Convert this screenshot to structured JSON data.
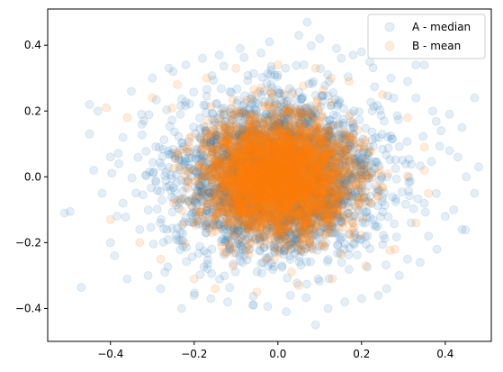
{
  "chart_data": {
    "type": "scatter",
    "title": "",
    "xlabel": "",
    "ylabel": "",
    "xlim": [
      -0.55,
      0.51
    ],
    "ylim": [
      -0.5,
      0.51
    ],
    "xticks": [
      -0.4,
      -0.2,
      0.0,
      0.2,
      0.4
    ],
    "xtick_labels": [
      "−0.4",
      "−0.2",
      "0.0",
      "0.2",
      "0.4"
    ],
    "yticks": [
      -0.4,
      -0.2,
      0.0,
      0.2,
      0.4
    ],
    "ytick_labels": [
      "−0.4",
      "−0.2",
      "0.0",
      "0.2",
      "0.4"
    ],
    "grid": false,
    "legend_position": "top-right",
    "series": [
      {
        "name": "A - median",
        "color": "#1f77b4",
        "alpha": 0.12,
        "distribution": "2D normal cloud, center (0.0, 0.0), std approx 0.12",
        "points": [
          [
            -0.51,
            -0.11
          ],
          [
            -0.45,
            0.22
          ],
          [
            -0.45,
            0.13
          ],
          [
            -0.43,
            0.2
          ],
          [
            -0.4,
            0.06
          ],
          [
            -0.4,
            -0.2
          ],
          [
            -0.39,
            -0.24
          ],
          [
            -0.37,
            0.12
          ],
          [
            -0.36,
            -0.31
          ],
          [
            -0.35,
            0.26
          ],
          [
            -0.33,
            -0.16
          ],
          [
            -0.32,
            0.17
          ],
          [
            -0.31,
            -0.3
          ],
          [
            -0.3,
            0.3
          ],
          [
            -0.28,
            -0.34
          ],
          [
            -0.27,
            -0.29
          ],
          [
            -0.25,
            0.32
          ],
          [
            -0.23,
            -0.4
          ],
          [
            -0.22,
            0.34
          ],
          [
            -0.2,
            -0.36
          ],
          [
            -0.18,
            0.36
          ],
          [
            -0.16,
            -0.37
          ],
          [
            -0.14,
            0.37
          ],
          [
            -0.12,
            -0.38
          ],
          [
            -0.09,
            0.39
          ],
          [
            -0.06,
            -0.39
          ],
          [
            -0.02,
            0.41
          ],
          [
            0.02,
            -0.41
          ],
          [
            0.05,
            0.43
          ],
          [
            0.07,
            0.47
          ],
          [
            0.09,
            -0.45
          ],
          [
            0.1,
            0.42
          ],
          [
            0.12,
            -0.4
          ],
          [
            0.14,
            0.39
          ],
          [
            0.16,
            -0.38
          ],
          [
            0.18,
            0.37
          ],
          [
            0.2,
            -0.37
          ],
          [
            0.22,
            0.35
          ],
          [
            0.24,
            -0.36
          ],
          [
            0.26,
            -0.34
          ],
          [
            0.27,
            0.3
          ],
          [
            0.29,
            -0.3
          ],
          [
            0.31,
            0.29
          ],
          [
            0.31,
            -0.25
          ],
          [
            0.33,
            0.24
          ],
          [
            0.34,
            -0.26
          ],
          [
            0.35,
            0.34
          ],
          [
            0.36,
            -0.18
          ],
          [
            0.37,
            0.2
          ],
          [
            0.38,
            -0.22
          ],
          [
            0.39,
            0.14
          ],
          [
            0.4,
            -0.12
          ],
          [
            0.41,
            0.08
          ],
          [
            0.42,
            -0.1
          ],
          [
            0.43,
            0.06
          ],
          [
            0.44,
            0.15
          ],
          [
            0.45,
            0.0
          ],
          [
            0.47,
            -0.05
          ],
          [
            0.48,
            0.03
          ],
          [
            0.44,
            -0.16
          ],
          [
            0.41,
            0.19
          ],
          [
            -0.42,
            -0.05
          ],
          [
            -0.44,
            0.02
          ],
          [
            -0.38,
            0.04
          ],
          [
            -0.37,
            -0.08
          ],
          [
            0.47,
            0.24
          ],
          [
            0.33,
            0.34
          ],
          [
            -0.26,
            0.33
          ],
          [
            0.2,
            0.38
          ],
          [
            0.03,
            -0.36
          ]
        ]
      },
      {
        "name": "B - mean",
        "color": "#ff7f0e",
        "alpha": 0.15,
        "distribution": "2D normal cloud, center (0.0, 0.0), std approx 0.08",
        "points": [
          [
            -0.41,
            0.21
          ],
          [
            -0.4,
            -0.13
          ],
          [
            -0.36,
            0.18
          ],
          [
            -0.33,
            -0.2
          ],
          [
            -0.3,
            0.24
          ],
          [
            -0.28,
            -0.25
          ],
          [
            -0.24,
            0.28
          ],
          [
            -0.2,
            -0.31
          ],
          [
            -0.17,
            0.3
          ],
          [
            -0.15,
            -0.34
          ],
          [
            -0.1,
            0.33
          ],
          [
            -0.05,
            -0.35
          ],
          [
            0.0,
            0.34
          ],
          [
            0.05,
            -0.33
          ],
          [
            0.09,
            0.33
          ],
          [
            0.13,
            -0.31
          ],
          [
            0.17,
            0.29
          ],
          [
            0.21,
            -0.27
          ],
          [
            0.25,
            0.25
          ],
          [
            0.28,
            -0.22
          ],
          [
            0.31,
            0.18
          ],
          [
            0.33,
            -0.14
          ],
          [
            0.35,
            0.09
          ],
          [
            0.36,
            -0.05
          ],
          [
            0.35,
            0.02
          ]
        ]
      }
    ]
  }
}
